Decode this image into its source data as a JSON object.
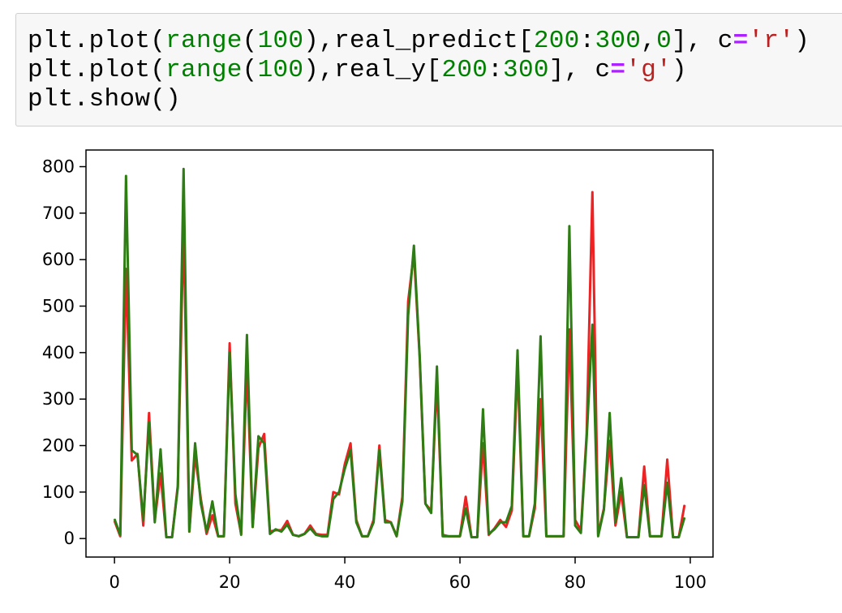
{
  "code_cell": {
    "lines": [
      [
        {
          "t": "plt.plot(",
          "k": "name"
        },
        {
          "t": "range",
          "k": "builtin"
        },
        {
          "t": "(",
          "k": "punct"
        },
        {
          "t": "100",
          "k": "num"
        },
        {
          "t": "),real_predict[",
          "k": "name"
        },
        {
          "t": "200",
          "k": "num"
        },
        {
          "t": ":",
          "k": "punct"
        },
        {
          "t": "300",
          "k": "num"
        },
        {
          "t": ",",
          "k": "punct"
        },
        {
          "t": "0",
          "k": "num"
        },
        {
          "t": "], c",
          "k": "name"
        },
        {
          "t": "=",
          "k": "op"
        },
        {
          "t": "'r'",
          "k": "str"
        },
        {
          "t": ")",
          "k": "punct"
        }
      ],
      [
        {
          "t": "plt.plot(",
          "k": "name"
        },
        {
          "t": "range",
          "k": "builtin"
        },
        {
          "t": "(",
          "k": "punct"
        },
        {
          "t": "100",
          "k": "num"
        },
        {
          "t": "),real_y[",
          "k": "name"
        },
        {
          "t": "200",
          "k": "num"
        },
        {
          "t": ":",
          "k": "punct"
        },
        {
          "t": "300",
          "k": "num"
        },
        {
          "t": "], c",
          "k": "name"
        },
        {
          "t": "=",
          "k": "op"
        },
        {
          "t": "'g'",
          "k": "str"
        },
        {
          "t": ")",
          "k": "punct"
        }
      ],
      [
        {
          "t": "plt.show()",
          "k": "name"
        }
      ]
    ]
  },
  "chart_data": {
    "type": "line",
    "title": "",
    "xlabel": "",
    "ylabel": "",
    "xlim": [
      -4.95,
      103.95
    ],
    "ylim": [
      -39.8,
      835.8
    ],
    "xticks": [
      0,
      20,
      40,
      60,
      80,
      100
    ],
    "yticks": [
      0,
      100,
      200,
      300,
      400,
      500,
      600,
      700,
      800
    ],
    "grid": false,
    "legend": "none",
    "series": [
      {
        "color": "#ee2222",
        "x": [
          0,
          1,
          2,
          3,
          4,
          5,
          6,
          7,
          8,
          9,
          10,
          11,
          12,
          13,
          14,
          15,
          16,
          17,
          18,
          19,
          20,
          21,
          22,
          23,
          24,
          25,
          26,
          27,
          28,
          29,
          30,
          31,
          32,
          33,
          34,
          35,
          36,
          37,
          38,
          39,
          40,
          41,
          42,
          43,
          44,
          45,
          46,
          47,
          48,
          49,
          50,
          51,
          52,
          53,
          54,
          55,
          56,
          57,
          58,
          59,
          60,
          61,
          62,
          63,
          64,
          65,
          66,
          67,
          68,
          69,
          70,
          71,
          72,
          73,
          74,
          75,
          76,
          77,
          78,
          79,
          80,
          81,
          82,
          83,
          84,
          85,
          86,
          87,
          88,
          89,
          90,
          91,
          92,
          93,
          94,
          95,
          96,
          97,
          98,
          99
        ],
        "values": [
          38,
          5,
          580,
          168,
          182,
          28,
          270,
          40,
          140,
          3,
          3,
          115,
          680,
          15,
          180,
          85,
          10,
          50,
          5,
          5,
          420,
          75,
          10,
          370,
          25,
          195,
          225,
          15,
          18,
          18,
          38,
          8,
          5,
          10,
          28,
          10,
          8,
          8,
          100,
          95,
          160,
          205,
          40,
          5,
          5,
          40,
          200,
          40,
          35,
          5,
          90,
          510,
          615,
          390,
          75,
          60,
          340,
          8,
          5,
          5,
          5,
          90,
          3,
          3,
          205,
          8,
          22,
          40,
          25,
          60,
          370,
          5,
          5,
          65,
          300,
          5,
          5,
          5,
          5,
          450,
          40,
          18,
          225,
          745,
          8,
          65,
          210,
          28,
          100,
          3,
          3,
          3,
          155,
          5,
          5,
          5,
          170,
          3,
          3,
          72
        ]
      },
      {
        "color": "#2e7d14",
        "x": [
          0,
          1,
          2,
          3,
          4,
          5,
          6,
          7,
          8,
          9,
          10,
          11,
          12,
          13,
          14,
          15,
          16,
          17,
          18,
          19,
          20,
          21,
          22,
          23,
          24,
          25,
          26,
          27,
          28,
          29,
          30,
          31,
          32,
          33,
          34,
          35,
          36,
          37,
          38,
          39,
          40,
          41,
          42,
          43,
          44,
          45,
          46,
          47,
          48,
          49,
          50,
          51,
          52,
          53,
          54,
          55,
          56,
          57,
          58,
          59,
          60,
          61,
          62,
          63,
          64,
          65,
          66,
          67,
          68,
          69,
          70,
          71,
          72,
          73,
          74,
          75,
          76,
          77,
          78,
          79,
          80,
          81,
          82,
          83,
          84,
          85,
          86,
          87,
          88,
          89,
          90,
          91,
          92,
          93,
          94,
          95,
          96,
          97,
          98,
          99
        ],
        "values": [
          42,
          8,
          780,
          190,
          180,
          40,
          250,
          35,
          192,
          3,
          3,
          110,
          795,
          15,
          205,
          75,
          15,
          80,
          5,
          5,
          400,
          95,
          8,
          438,
          25,
          220,
          205,
          10,
          20,
          15,
          30,
          8,
          5,
          10,
          22,
          8,
          5,
          5,
          85,
          100,
          150,
          190,
          35,
          5,
          5,
          35,
          190,
          35,
          35,
          5,
          80,
          480,
          630,
          395,
          75,
          55,
          370,
          5,
          5,
          5,
          5,
          65,
          3,
          3,
          278,
          10,
          20,
          35,
          35,
          70,
          405,
          5,
          5,
          75,
          435,
          5,
          5,
          5,
          5,
          672,
          28,
          12,
          215,
          460,
          5,
          62,
          270,
          35,
          130,
          3,
          3,
          3,
          115,
          5,
          5,
          5,
          120,
          3,
          3,
          45
        ]
      }
    ]
  }
}
